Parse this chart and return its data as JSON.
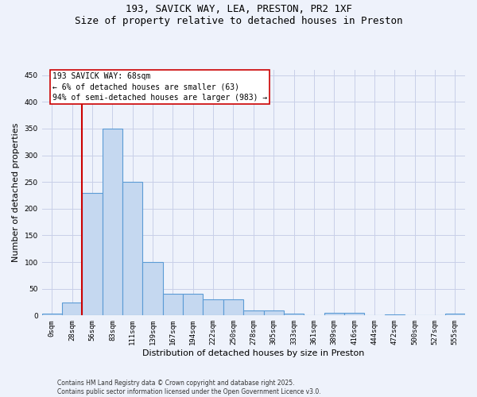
{
  "title_line1": "193, SAVICK WAY, LEA, PRESTON, PR2 1XF",
  "title_line2": "Size of property relative to detached houses in Preston",
  "xlabel": "Distribution of detached houses by size in Preston",
  "ylabel": "Number of detached properties",
  "bin_labels": [
    "0sqm",
    "28sqm",
    "56sqm",
    "83sqm",
    "111sqm",
    "139sqm",
    "167sqm",
    "194sqm",
    "222sqm",
    "250sqm",
    "278sqm",
    "305sqm",
    "333sqm",
    "361sqm",
    "389sqm",
    "416sqm",
    "444sqm",
    "472sqm",
    "500sqm",
    "527sqm",
    "555sqm"
  ],
  "bar_heights": [
    3,
    25,
    230,
    350,
    250,
    100,
    40,
    40,
    30,
    30,
    10,
    10,
    3,
    0,
    5,
    5,
    0,
    2,
    0,
    0,
    3
  ],
  "bar_color": "#c5d8f0",
  "bar_edge_color": "#5b9bd5",
  "bar_edge_width": 0.8,
  "vline_color": "#cc0000",
  "vline_x": 1.5,
  "ylim": [
    0,
    460
  ],
  "yticks": [
    0,
    50,
    100,
    150,
    200,
    250,
    300,
    350,
    400,
    450
  ],
  "annotation_text": "193 SAVICK WAY: 68sqm\n← 6% of detached houses are smaller (63)\n94% of semi-detached houses are larger (983) →",
  "annotation_box_facecolor": "#ffffff",
  "annotation_box_edgecolor": "#cc0000",
  "footer_line1": "Contains HM Land Registry data © Crown copyright and database right 2025.",
  "footer_line2": "Contains public sector information licensed under the Open Government Licence v3.0.",
  "background_color": "#eef2fb",
  "grid_color": "#c8cfe8",
  "title_fontsize": 9,
  "axis_label_fontsize": 8,
  "tick_fontsize": 6.5,
  "annotation_fontsize": 7,
  "footer_fontsize": 5.5,
  "ylabel_fontsize": 8
}
